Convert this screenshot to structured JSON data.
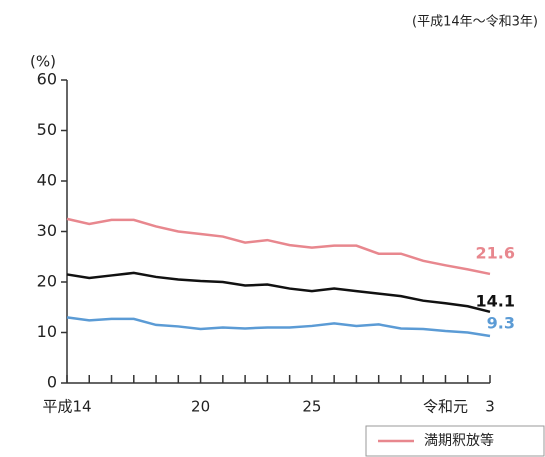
{
  "chart_data": {
    "type": "line",
    "subtitle": "(平成14年～令和3年)",
    "y_label": "(%)",
    "categories": [
      "平成14",
      null,
      null,
      null,
      null,
      null,
      "20",
      null,
      null,
      null,
      null,
      "25",
      null,
      null,
      null,
      null,
      null,
      "令和元",
      null,
      "3"
    ],
    "series": [
      {
        "name": "満期釈放等",
        "color": "#e8878e",
        "values": [
          32.5,
          31.5,
          32.3,
          32.3,
          31,
          30,
          29.5,
          29,
          27.8,
          28.3,
          27.3,
          26.8,
          27.2,
          27.2,
          25.6,
          25.6,
          24.2,
          23.3,
          22.5,
          21.6
        ]
      },
      {
        "color": "#111111",
        "values": [
          21.5,
          20.8,
          21.3,
          21.8,
          21,
          20.5,
          20.2,
          20,
          19.3,
          19.5,
          18.7,
          18.2,
          18.7,
          18.2,
          17.7,
          17.2,
          16.3,
          15.8,
          15.2,
          14.1
        ]
      },
      {
        "color": "#5b9bd5",
        "values": [
          13,
          12.4,
          12.7,
          12.7,
          11.5,
          11.2,
          10.7,
          11,
          10.8,
          11,
          11,
          11.3,
          11.8,
          11.3,
          11.6,
          10.8,
          10.7,
          10.3,
          10,
          9.3
        ]
      }
    ],
    "ylim": [
      0,
      60
    ],
    "yticks": [
      0,
      10,
      20,
      30,
      40,
      50,
      60
    ],
    "grid": false
  }
}
